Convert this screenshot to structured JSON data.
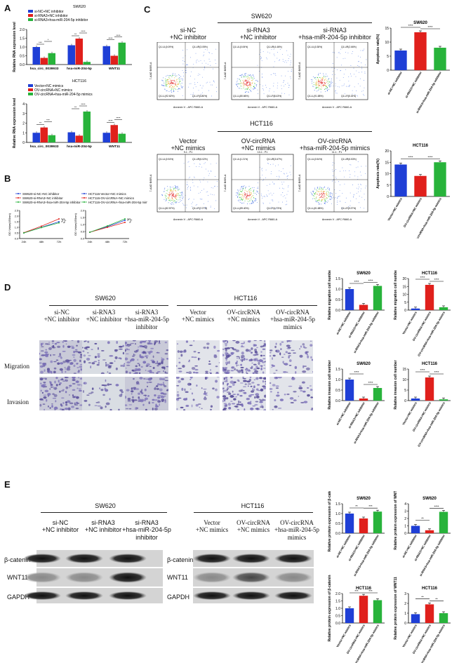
{
  "panels": {
    "A": "A",
    "B": "B",
    "C": "C",
    "D": "D",
    "E": "E"
  },
  "colors": {
    "blue": "#1f3fd6",
    "red": "#e0201c",
    "green": "#28b33b"
  },
  "panelA": {
    "top_title": "SW620",
    "top_legend": [
      "si-NC+NC inhibitor",
      "si-RNA3+NC inhibitor",
      "si-RNA3+hsa-miR-204-5p inhibitor"
    ],
    "bottom_title": "HCT116",
    "bottom_legend": [
      "Vector+NC mimics",
      "OV-circRNA+NC mimics",
      "OV-circRNA+hsa-miR-204-5p mimics"
    ],
    "ylabel": "Relative RNA expression level",
    "categories": [
      "hsa_circ_0039933",
      "hsa-miR-204-5p",
      "WNT11"
    ]
  },
  "panelB": {
    "left_legend": [
      "SW620-si-NC+NC inhibitor",
      "SW620-si-RNA3+NC inhibitor",
      "SW620-si-RNA3+hsa-miR-204-5p inhibitor"
    ],
    "right_legend": [
      "HCT116-Vector+NC mimics",
      "HCT116-OV-circRNA+NC mimics",
      "HCT116-OV-circRNA+hsa-miR-204-5p mimics"
    ],
    "ylabel": "OD Value(450nm)",
    "x": [
      "24h",
      "48h",
      "72h"
    ]
  },
  "panelC": {
    "sw620": "SW620",
    "hct116": "HCT116",
    "sw620_groups": [
      "si-NC\n+NC inhibitor",
      "si-RNA3\n+NC inhibitor",
      "si-RNA3\n+hsa-miR-204-5p inhibitor"
    ],
    "hct116_groups": [
      "Vector\n+NC mimics",
      "OV-circRNA\n+NC mimics",
      "OV-circRNA\n+hsa-miR-204-5p mimics"
    ],
    "flow_xlabel": "Annexin V - APC R660-A",
    "flow_ylabel": "7-AAD B695-A",
    "sw620_quadrants": [
      {
        "header": "3-3 : P1",
        "q1": "Q1-UL(0.09%)",
        "q2": "Q1-UR(3.05%)",
        "q3": "Q1-LL(92.62%)",
        "q4": "Q1-LR(3.80%)"
      },
      {
        "header": "4-2 : P1",
        "q1": "Q1-UL(0.06%)",
        "q2": "Q1-UR(4.46%)",
        "q3": "Q1-LL(80.66%)",
        "q4": "Q1-LR(8.43%)"
      },
      {
        "header": "5-2 : P1",
        "q1": "Q1-UL(0.38%)",
        "q2": "Q1-UR(2.66%)",
        "q3": "Q1-LL(91.88%)",
        "q4": "Q1-LR(5.15%)"
      }
    ],
    "hct116_quadrants": [
      {
        "header": "9-1 : P1",
        "q1": "Q1-UL(0.94%)",
        "q2": "Q1-UR(6.02%)",
        "q3": "Q1-LL(82.57%)",
        "q4": "Q1-LR(7.07%)"
      },
      {
        "header": "10-1 : P1",
        "q1": "Q1-UL(1.21%)",
        "q2": "Q1-UR(3.67%)",
        "q3": "Q1-LL(89.40%)",
        "q4": "Q1-LR(4.73%)"
      },
      {
        "header": "11-1 : P1",
        "q1": "Q1-UL(0.54%)",
        "q2": "Q1-UR(6.53%)",
        "q3": "Q1-LL(81.88%)",
        "q4": "Q1-LR(9.37%)"
      }
    ]
  },
  "panelD": {
    "sw620": "SW620",
    "hct116": "HCT116",
    "sw620_groups": [
      "si-NC\n+NC inhibitor",
      "si-RNA3\n+NC inhibitor",
      "si-RNA3\n+hsa-miR-204-5p\ninhibitor"
    ],
    "hct116_groups": [
      "Vector\n+NC mimics",
      "OV-circRNA\n+NC mimics",
      "OV-circRNA\n+hsa-miR-204-5p\nmimics"
    ],
    "rows": [
      "Migration",
      "Invasion"
    ]
  },
  "panelE": {
    "sw620": "SW620",
    "hct116": "HCT116",
    "sw620_groups": [
      "si-NC\n+NC inhibitor",
      "si-RNA3\n+NC inhibitor",
      "si-RNA3\n+hsa-miR-204-5p\ninhibitor"
    ],
    "hct116_groups": [
      "Vector\n+NC mimics",
      "OV-circRNA\n+NC mimics",
      "OV-circRNA\n+hsa-miR-204-5p\nmimics"
    ],
    "proteins": [
      "β-catenin",
      "WNT11",
      "GAPDH"
    ]
  },
  "chart_data": [
    {
      "id": "A_top",
      "type": "bar",
      "title": "SW620",
      "ylabel": "Relative RNA expression level",
      "ylim": [
        0,
        2.0
      ],
      "yticks": [
        "0.0",
        "0.5",
        "1.0",
        "1.5",
        "2.0"
      ],
      "categories": [
        "hsa_circ_0039933",
        "hsa-miR-204-5p",
        "WNT11"
      ],
      "series": [
        {
          "name": "si-NC+NC inhibitor",
          "values": [
            1.0,
            1.1,
            1.05
          ]
        },
        {
          "name": "si-RNA3+NC inhibitor",
          "values": [
            0.38,
            1.48,
            0.5
          ]
        },
        {
          "name": "si-RNA3+hsa-miR-204-5p inhibitor",
          "values": [
            0.65,
            0.15,
            1.25
          ]
        }
      ],
      "sig": [
        [
          "***",
          "*"
        ],
        [
          "**",
          "****"
        ],
        [
          "****",
          "****"
        ]
      ]
    },
    {
      "id": "A_bot",
      "type": "bar",
      "title": "HCT116",
      "ylabel": "Relative RNA expression level",
      "ylim": [
        0,
        4
      ],
      "yticks": [
        "0",
        "1",
        "2",
        "3",
        "4"
      ],
      "categories": [
        "hsa_circ_0039933",
        "hsa-miR-204-5p",
        "WNT11"
      ],
      "series": [
        {
          "name": "Vector+NC mimics",
          "values": [
            1.0,
            1.05,
            1.0
          ]
        },
        {
          "name": "OV-circRNA+NC mimics",
          "values": [
            1.55,
            0.7,
            1.8
          ]
        },
        {
          "name": "OV-circRNA+hsa-miR-204-5p mimics",
          "values": [
            0.75,
            3.2,
            0.9
          ]
        }
      ],
      "sig": [
        [
          "**",
          "***"
        ],
        [
          "**",
          "****"
        ],
        [
          "****",
          "****"
        ]
      ]
    },
    {
      "id": "B_left",
      "type": "line",
      "ylabel": "OD Value(450nm)",
      "x": [
        "24h",
        "48h",
        "72h"
      ],
      "ylim": [
        0,
        2.5
      ],
      "yticks": [
        "0.0",
        "0.5",
        "1.0",
        "1.5",
        "2.0",
        "2.5"
      ],
      "series": [
        {
          "name": "SW620-si-NC+NC inhibitor",
          "values": [
            0.5,
            1.0,
            1.5
          ]
        },
        {
          "name": "SW620-si-RNA3+NC inhibitor",
          "values": [
            0.52,
            1.1,
            1.75
          ]
        },
        {
          "name": "SW620-si-RNA3+hsa-miR-204-5p inhibitor",
          "values": [
            0.5,
            0.98,
            1.4
          ]
        }
      ],
      "sig": [
        "*",
        "*"
      ]
    },
    {
      "id": "B_right",
      "type": "line",
      "ylabel": "OD Value(450nm)",
      "x": [
        "24h",
        "48h",
        "72h"
      ],
      "ylim": [
        0,
        2.0
      ],
      "yticks": [
        "0.0",
        "0.5",
        "1.0",
        "1.5",
        "2.0"
      ],
      "series": [
        {
          "name": "HCT116-Vector+NC mimics",
          "values": [
            0.45,
            0.85,
            1.3
          ]
        },
        {
          "name": "HCT116-OV-circRNA+NC mimics",
          "values": [
            0.45,
            0.8,
            1.15
          ]
        },
        {
          "name": "HCT116-OV-circRNA+hsa-miR-204-5p mimics",
          "values": [
            0.45,
            0.9,
            1.4
          ]
        }
      ],
      "sig": [
        "*",
        "*"
      ]
    },
    {
      "id": "C_top",
      "type": "bar",
      "title": "SW620",
      "ylabel": "Apoptosis rate(%)",
      "ylim": [
        0,
        15
      ],
      "yticks": [
        "0",
        "5",
        "10",
        "15"
      ],
      "categories": [
        "si-NC+NC inhibitor",
        "si-RNA3+NC inhibitor",
        "si-RNA3+hsa-miR-204-5p inhibitor"
      ],
      "values": [
        7.0,
        13.5,
        8.0
      ],
      "sig": [
        "****",
        "****"
      ]
    },
    {
      "id": "C_bot",
      "type": "bar",
      "title": "HCT116",
      "ylabel": "Apoptosis rate(%)",
      "ylim": [
        0,
        20
      ],
      "yticks": [
        "0",
        "5",
        "10",
        "15",
        "20"
      ],
      "categories": [
        "Vector+NC mimics",
        "OV-circRNA+NC mimics",
        "OV-circRNA+hsa-miR-204-5p mimics"
      ],
      "values": [
        14.0,
        9.0,
        15.0
      ],
      "sig": [
        "****",
        "****"
      ]
    },
    {
      "id": "D_mig_sw",
      "type": "bar",
      "title": "SW620",
      "ylabel": "Relative migration cell number",
      "ylim": [
        0,
        1.5
      ],
      "yticks": [
        "0.0",
        "0.5",
        "1.0",
        "1.5"
      ],
      "categories": [
        "si-NC+NC inhibitor",
        "si-RNA3+NC inhibitor",
        "si-RNA3+hsa-miR-204-5p inhibitor"
      ],
      "values": [
        1.0,
        0.25,
        1.15
      ],
      "sig": [
        "****",
        "****"
      ]
    },
    {
      "id": "D_mig_hct",
      "type": "bar",
      "title": "HCT116",
      "ylabel": "Relative migration cell number",
      "ylim": [
        0,
        20
      ],
      "yticks": [
        "0",
        "5",
        "10",
        "15",
        "20"
      ],
      "categories": [
        "Vector+NC mimics",
        "OV-circRNA+NC mimics",
        "OV-circRNA+hsa-miR-204-5p mimics"
      ],
      "values": [
        1.0,
        16.0,
        1.8
      ],
      "sig": [
        "****",
        "****"
      ]
    },
    {
      "id": "D_inv_sw",
      "type": "bar",
      "title": "SW620",
      "ylabel": "Relative invasion cell number",
      "ylim": [
        0,
        1.5
      ],
      "yticks": [
        "0.0",
        "0.5",
        "1.0",
        "1.5"
      ],
      "categories": [
        "si-NC+NC inhibitor",
        "si-RNA3+NC inhibitor",
        "si-RNA3+hsa-miR-204-5p inhibitor"
      ],
      "values": [
        1.0,
        0.1,
        0.6
      ],
      "sig": [
        "****",
        "****"
      ]
    },
    {
      "id": "D_inv_hct",
      "type": "bar",
      "title": "HCT116",
      "ylabel": "Relative invasion cell number",
      "ylim": [
        0,
        15
      ],
      "yticks": [
        "0",
        "5",
        "10",
        "15"
      ],
      "categories": [
        "Vector+NC mimics",
        "OV-circRNA+NC mimics",
        "OV-circRNA+hsa-miR-204-5p mimics"
      ],
      "values": [
        1.0,
        11.0,
        0.6
      ],
      "sig": [
        "****",
        "****"
      ]
    },
    {
      "id": "E_bcat_sw",
      "type": "bar",
      "title": "SW620",
      "ylabel": "Relative protein expression of β-catenin",
      "ylim": [
        0,
        1.5
      ],
      "yticks": [
        "0.0",
        "0.5",
        "1.0",
        "1.5"
      ],
      "categories": [
        "si-NC+NC inhibitor",
        "si-RNA3+NC inhibitor",
        "si-RNA3+hsa-miR-204-5p inhibitor"
      ],
      "values": [
        1.0,
        0.75,
        1.1
      ],
      "sig": [
        "**",
        "***"
      ]
    },
    {
      "id": "E_wnt_sw",
      "type": "bar",
      "title": "SW620",
      "ylabel": "Relative protein expression of WNT11",
      "ylim": [
        0,
        4
      ],
      "yticks": [
        "0",
        "1",
        "2",
        "3",
        "4"
      ],
      "categories": [
        "si-NC+NC inhibitor",
        "si-RNA3+NC inhibitor",
        "si-RNA3+hsa-miR-204-5p inhibitor"
      ],
      "values": [
        1.0,
        0.4,
        2.9
      ],
      "sig": [
        "**",
        "****"
      ]
    },
    {
      "id": "E_bcat_hct",
      "type": "bar",
      "title": "HCT116",
      "ylabel": "Relative protein expression of β-catenin",
      "ylim": [
        0,
        2.0
      ],
      "yticks": [
        "0.0",
        "0.5",
        "1.0",
        "1.5",
        "2.0"
      ],
      "categories": [
        "Vector+NC mimics",
        "OV-circRNA+NC mimics",
        "OV-circRNA+hsa-miR-204-5p mimics"
      ],
      "values": [
        1.0,
        1.85,
        1.55
      ],
      "sig": [
        "***",
        "***"
      ]
    },
    {
      "id": "E_wnt_hct",
      "type": "bar",
      "title": "HCT116",
      "ylabel": "Relative protein expression of WNT11",
      "ylim": [
        0,
        3
      ],
      "yticks": [
        "0",
        "1",
        "2",
        "3"
      ],
      "categories": [
        "Vector+NC mimics",
        "OV-circRNA+NC mimics",
        "OV-circRNA+hsa-miR-204-5p mimics"
      ],
      "values": [
        0.9,
        1.9,
        1.0
      ],
      "sig": [
        "**",
        "**"
      ]
    }
  ]
}
